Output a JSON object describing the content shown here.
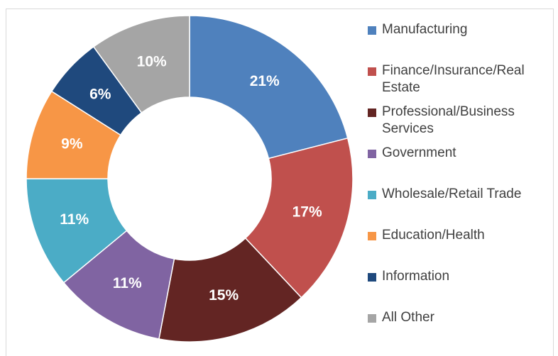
{
  "chart_data": {
    "type": "donut",
    "categories": [
      "Manufacturing",
      "Finance/Insurance/Real Estate",
      "Professional/Business Services",
      "Government",
      "Wholesale/Retail Trade",
      "Education/Health",
      "Information",
      "All Other"
    ],
    "values": [
      21,
      17,
      15,
      11,
      11,
      9,
      6,
      10
    ],
    "value_labels": [
      "21%",
      "17%",
      "15%",
      "11%",
      "11%",
      "9%",
      "6%",
      "10%"
    ],
    "colors": [
      "#4f81bd",
      "#c0504d",
      "#632523",
      "#8064a2",
      "#4bacc6",
      "#f79646",
      "#1f497d",
      "#a5a5a5"
    ],
    "legend": "right"
  }
}
